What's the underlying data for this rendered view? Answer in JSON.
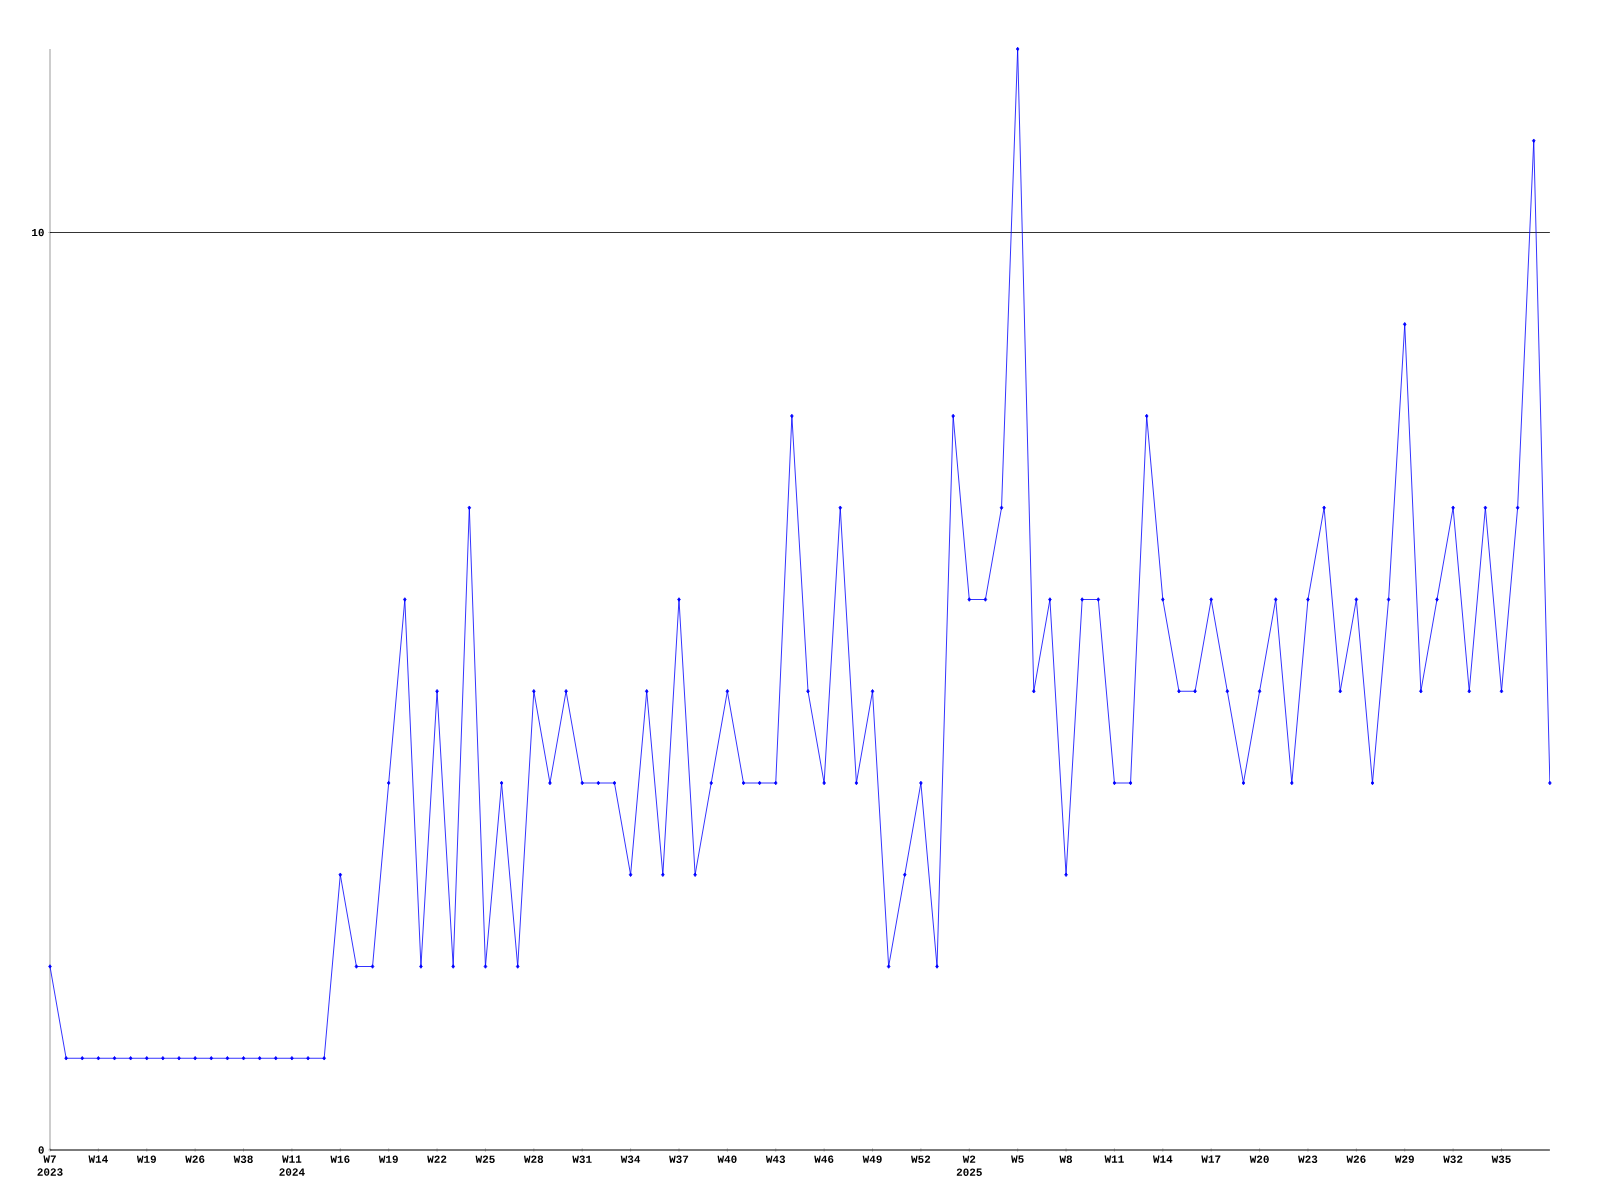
{
  "chart_data": {
    "type": "line",
    "color": "#0000ff",
    "marker": "diamond",
    "grid": "y",
    "categories": [
      "W7 2023",
      null,
      null,
      "W14",
      null,
      null,
      "W19",
      null,
      null,
      "W26",
      null,
      null,
      "W38",
      null,
      null,
      "W11 2024",
      null,
      null,
      "W16",
      null,
      null,
      "W19",
      null,
      null,
      "W22",
      null,
      null,
      "W25",
      null,
      null,
      "W28",
      null,
      null,
      "W31",
      null,
      null,
      "W34",
      null,
      null,
      "W37",
      null,
      null,
      "W40",
      null,
      null,
      "W43",
      null,
      null,
      "W46",
      null,
      null,
      "W49",
      null,
      null,
      "W52",
      null,
      null,
      "W2 2025",
      null,
      null,
      "W5",
      null,
      null,
      "W8",
      null,
      null,
      "W11",
      null,
      null,
      "W14",
      null,
      null,
      "W17",
      null,
      null,
      "W20",
      null,
      null,
      "W23",
      null,
      null,
      "W26",
      null,
      null,
      "W29",
      null,
      null,
      "W32",
      null,
      null,
      "W35",
      null,
      null,
      null
    ],
    "values": [
      2,
      1,
      1,
      1,
      1,
      1,
      1,
      1,
      1,
      1,
      1,
      1,
      1,
      1,
      1,
      1,
      1,
      1,
      3,
      2,
      2,
      4,
      6,
      2,
      5,
      2,
      7,
      2,
      4,
      2,
      5,
      4,
      5,
      4,
      4,
      4,
      3,
      5,
      3,
      6,
      3,
      4,
      5,
      4,
      4,
      4,
      8,
      5,
      4,
      7,
      4,
      5,
      2,
      3,
      4,
      2,
      8,
      6,
      6,
      7,
      12,
      5,
      6,
      3,
      6,
      6,
      4,
      4,
      8,
      6,
      5,
      5,
      6,
      5,
      4,
      5,
      6,
      4,
      6,
      7,
      5,
      6,
      4,
      6,
      9,
      5,
      6,
      7,
      5,
      7,
      5,
      7,
      11,
      4
    ],
    "ylim": [
      0,
      12
    ],
    "yticks": [
      0,
      10
    ]
  }
}
